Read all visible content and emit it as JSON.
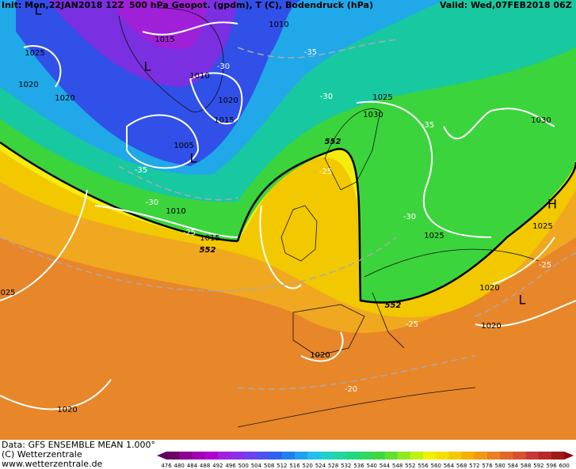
{
  "header": {
    "left": "Init: Mon,22JAN2018 12Z",
    "center": "500 hPa Geopot. (gpdm), T (C), Bodendruck (hPa)",
    "right": "Valid: Wed,07FEB2018 06Z"
  },
  "map": {
    "pressure_labels": [
      "1015",
      "1010",
      "1025",
      "1020",
      "1010",
      "1020",
      "1020",
      "1015",
      "1005",
      "1010",
      "1015",
      "1025",
      "1030",
      "1030",
      "1025",
      "1025",
      "1020",
      "1020",
      "1020",
      "1020",
      "025"
    ],
    "temperature_labels": [
      "-35",
      "-30",
      "-30",
      "-35",
      "-35",
      "-25",
      "-30",
      "-25",
      "-30",
      "-25",
      "-25",
      "-20"
    ],
    "geopotential_labels": [
      "552",
      "552",
      "552"
    ],
    "centers": [
      "L",
      "L",
      "L",
      "H",
      "L"
    ]
  },
  "footer": {
    "data": "Data: GFS ENSEMBLE MEAN 1.000°",
    "copyright": "(C) Wetterzentrale",
    "url": "www.wetterzentrale.de"
  },
  "colorbar": {
    "labels": [
      476,
      480,
      484,
      488,
      492,
      496,
      500,
      504,
      508,
      512,
      516,
      520,
      524,
      528,
      532,
      536,
      540,
      544,
      548,
      552,
      556,
      560,
      564,
      568,
      572,
      576,
      580,
      584,
      588,
      592,
      596,
      600
    ]
  }
}
